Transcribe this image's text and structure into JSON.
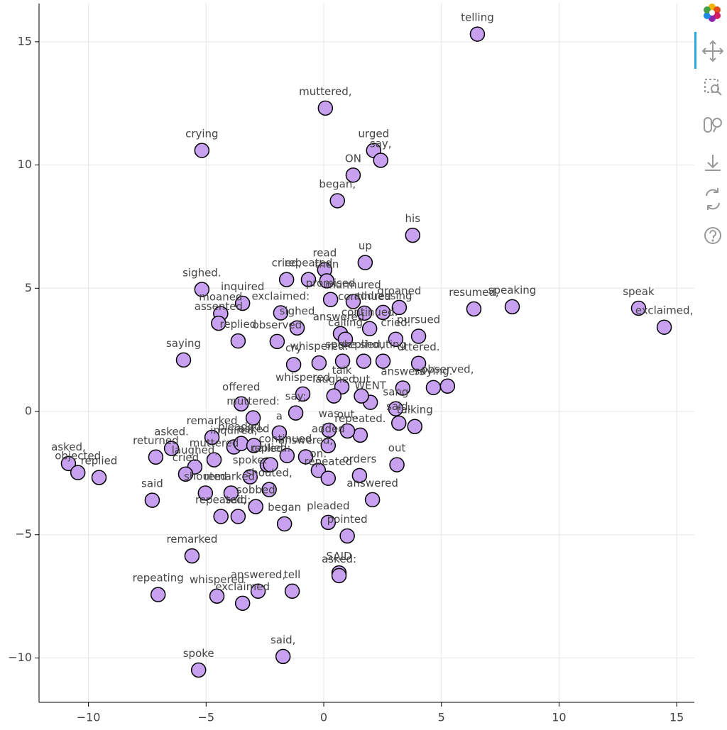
{
  "chart_data": {
    "type": "scatter",
    "color": "#c7a0ef",
    "grid": true,
    "xlim": [
      -12.1,
      15.75
    ],
    "ylim": [
      -11.8,
      16.55
    ],
    "xticks": [
      {
        "value": -10,
        "label": "−10"
      },
      {
        "value": -5,
        "label": "−5"
      },
      0,
      5,
      10,
      15
    ],
    "yticks": [
      {
        "value": -10,
        "label": "−10"
      },
      {
        "value": -5,
        "label": "−5"
      },
      0,
      5,
      10,
      15
    ],
    "labels": [
      "telling",
      "muttered,",
      "crying",
      "urged",
      "say,",
      "ON",
      "began,",
      "his",
      "up",
      "read",
      "cried,",
      "repeated",
      "then",
      "sighed.",
      "inquired",
      "moaned",
      "assented",
      "exclaimed:",
      "resumed,",
      "speaking",
      "speak",
      "exclaimed,",
      "sighed",
      "replied",
      "observed",
      "saying",
      "cry",
      "whispered",
      "talk",
      "offered",
      "WENT",
      "out",
      "saying.",
      "observed,",
      "sang",
      "talking",
      "repeated.",
      "remarked",
      "asked.",
      "returned",
      "asked,",
      "objected",
      "replied",
      "said",
      "orders",
      "out",
      "answered",
      "began",
      "pleaded",
      "pointed",
      "remarked",
      "SAID",
      "asked:",
      "repeating",
      "whispered",
      "exclaimed",
      "answered,",
      "tell",
      "said,",
      "spoke",
      "promised",
      "murmured",
      "continued",
      "addressing",
      "groaned",
      "answered:",
      "continued.",
      "pursued",
      "cried.",
      "calling",
      "whispered.",
      "spoke.",
      "replied,",
      "shouting",
      "uttered.",
      "answers",
      "laughed",
      "said.",
      "was",
      "out,",
      "say:",
      "muttered:",
      "a",
      "added",
      "on:",
      "repeated",
      "answered,",
      "continued,",
      "called",
      "inquired,",
      "pleaded,",
      "asked",
      "muttered",
      "laughed,",
      "cried",
      "shouted",
      "repeated,",
      "said:",
      "sobbed",
      "shouted,",
      "remarked,",
      "spoke:",
      "replied:"
    ],
    "x": [
      6.53,
      0.07,
      -5.18,
      2.12,
      2.42,
      1.25,
      0.58,
      3.78,
      1.76,
      0.04,
      -1.58,
      -0.65,
      0.13,
      -5.18,
      -3.45,
      -4.38,
      -4.47,
      -1.83,
      6.38,
      8.01,
      13.38,
      14.47,
      -1.13,
      -3.64,
      -1.98,
      -5.96,
      -1.28,
      -0.89,
      0.77,
      -3.51,
      1.98,
      1.6,
      4.66,
      5.26,
      3.06,
      3.87,
      1.55,
      -4.75,
      -6.47,
      -7.14,
      -10.85,
      -10.45,
      -9.55,
      -7.29,
      1.52,
      3.11,
      2.07,
      -1.67,
      0.19,
      1.0,
      -5.6,
      0.65,
      0.65,
      -7.04,
      -4.54,
      -3.45,
      -2.79,
      -1.34,
      -1.73,
      -5.32,
      0.29,
      1.25,
      1.73,
      2.52,
      3.21,
      0.71,
      1.95,
      4.03,
      3.06,
      0.92,
      -0.2,
      0.8,
      1.7,
      2.52,
      4.03,
      3.36,
      0.43,
      3.19,
      0.22,
      1.01,
      -1.19,
      -3.0,
      -1.89,
      0.19,
      -0.23,
      0.19,
      -0.77,
      -1.56,
      -2.4,
      -3.82,
      -3.51,
      -2.97,
      -4.66,
      -5.48,
      -5.87,
      -5.03,
      -4.37,
      -3.64,
      -2.89,
      -2.32,
      -3.94,
      -3.13,
      -2.26
    ],
    "values": [
      15.31,
      12.31,
      10.59,
      10.59,
      10.19,
      9.59,
      8.55,
      7.15,
      6.04,
      5.75,
      5.35,
      5.35,
      5.3,
      4.95,
      4.39,
      3.97,
      3.58,
      4.0,
      4.16,
      4.25,
      4.19,
      3.42,
      3.39,
      2.86,
      2.84,
      2.09,
      1.9,
      0.71,
      1.0,
      0.31,
      0.37,
      0.63,
      0.97,
      1.03,
      0.11,
      -0.61,
      -0.96,
      -1.05,
      -1.5,
      -1.85,
      -2.11,
      -2.48,
      -2.68,
      -3.6,
      -2.6,
      -2.16,
      -3.58,
      -4.56,
      -4.5,
      -5.05,
      -5.86,
      -6.55,
      -6.66,
      -7.43,
      -7.49,
      -7.78,
      -7.29,
      -7.29,
      -9.94,
      -10.49,
      4.54,
      4.46,
      3.99,
      4.02,
      4.22,
      3.16,
      3.36,
      3.05,
      2.93,
      2.93,
      1.97,
      2.04,
      2.04,
      2.04,
      1.95,
      0.95,
      0.63,
      -0.47,
      -0.76,
      -0.79,
      -0.06,
      -0.26,
      -0.87,
      -1.38,
      -2.39,
      -2.71,
      -1.84,
      -1.79,
      -2.17,
      -1.44,
      -1.3,
      -1.38,
      -1.96,
      -2.25,
      -2.54,
      -3.31,
      -4.26,
      -4.26,
      -3.86,
      -3.17,
      -3.31,
      -2.65,
      -2.16
    ]
  }
}
